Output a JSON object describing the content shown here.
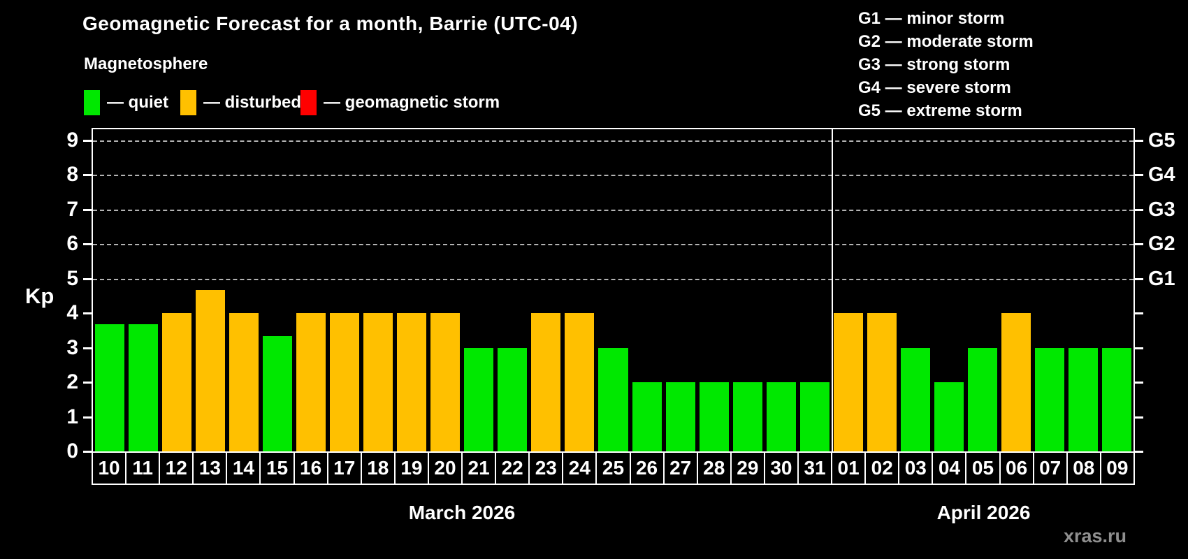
{
  "title": "Geomagnetic Forecast for a month, Barrie (UTC-04)",
  "legend": {
    "heading": "Magnetosphere",
    "items": [
      {
        "label": "— quiet",
        "status": "quiet",
        "color": "#00e800"
      },
      {
        "label": "— disturbed",
        "status": "disturbed",
        "color": "#ffc000"
      },
      {
        "label": "— geomagnetic storm",
        "status": "storm",
        "color": "#ff0000"
      }
    ]
  },
  "g_scale_legend": [
    "G1 — minor storm",
    "G2 — moderate storm",
    "G3 — strong storm",
    "G4 — severe storm",
    "G5 — extreme storm"
  ],
  "watermark": "xras.ru",
  "chart_data": {
    "type": "bar",
    "title": "Geomagnetic Forecast for a month, Barrie (UTC-04)",
    "ylabel": "Kp",
    "ylim": [
      0,
      9.4
    ],
    "yticks": [
      0,
      1,
      2,
      3,
      4,
      5,
      6,
      7,
      8,
      9
    ],
    "gridlines_at": [
      5,
      6,
      7,
      8,
      9
    ],
    "grid": "dashed horizontal at G-storm levels only",
    "legend_position": "top",
    "right_axis": [
      {
        "label": "G1",
        "kp": 5
      },
      {
        "label": "G2",
        "kp": 6
      },
      {
        "label": "G3",
        "kp": 7
      },
      {
        "label": "G4",
        "kp": 8
      },
      {
        "label": "G5",
        "kp": 9
      }
    ],
    "status_colors": {
      "quiet": "#00e800",
      "disturbed": "#ffc000",
      "storm": "#ff0000"
    },
    "months": [
      {
        "label": "March 2026",
        "days": [
          {
            "day": "10",
            "kp": 3.67,
            "status": "quiet"
          },
          {
            "day": "11",
            "kp": 3.67,
            "status": "quiet"
          },
          {
            "day": "12",
            "kp": 4,
            "status": "disturbed"
          },
          {
            "day": "13",
            "kp": 4.67,
            "status": "disturbed"
          },
          {
            "day": "14",
            "kp": 4,
            "status": "disturbed"
          },
          {
            "day": "15",
            "kp": 3.33,
            "status": "quiet"
          },
          {
            "day": "16",
            "kp": 4,
            "status": "disturbed"
          },
          {
            "day": "17",
            "kp": 4,
            "status": "disturbed"
          },
          {
            "day": "18",
            "kp": 4,
            "status": "disturbed"
          },
          {
            "day": "19",
            "kp": 4,
            "status": "disturbed"
          },
          {
            "day": "20",
            "kp": 4,
            "status": "disturbed"
          },
          {
            "day": "21",
            "kp": 3,
            "status": "quiet"
          },
          {
            "day": "22",
            "kp": 3,
            "status": "quiet"
          },
          {
            "day": "23",
            "kp": 4,
            "status": "disturbed"
          },
          {
            "day": "24",
            "kp": 4,
            "status": "disturbed"
          },
          {
            "day": "25",
            "kp": 3,
            "status": "quiet"
          },
          {
            "day": "26",
            "kp": 2,
            "status": "quiet"
          },
          {
            "day": "27",
            "kp": 2,
            "status": "quiet"
          },
          {
            "day": "28",
            "kp": 2,
            "status": "quiet"
          },
          {
            "day": "29",
            "kp": 2,
            "status": "quiet"
          },
          {
            "day": "30",
            "kp": 2,
            "status": "quiet"
          },
          {
            "day": "31",
            "kp": 2,
            "status": "quiet"
          }
        ]
      },
      {
        "label": "April 2026",
        "days": [
          {
            "day": "01",
            "kp": 4,
            "status": "disturbed"
          },
          {
            "day": "02",
            "kp": 4,
            "status": "disturbed"
          },
          {
            "day": "03",
            "kp": 3,
            "status": "quiet"
          },
          {
            "day": "04",
            "kp": 2,
            "status": "quiet"
          },
          {
            "day": "05",
            "kp": 3,
            "status": "quiet"
          },
          {
            "day": "06",
            "kp": 4,
            "status": "disturbed"
          },
          {
            "day": "07",
            "kp": 3,
            "status": "quiet"
          },
          {
            "day": "08",
            "kp": 3,
            "status": "quiet"
          },
          {
            "day": "09",
            "kp": 3,
            "status": "quiet"
          }
        ]
      }
    ]
  }
}
